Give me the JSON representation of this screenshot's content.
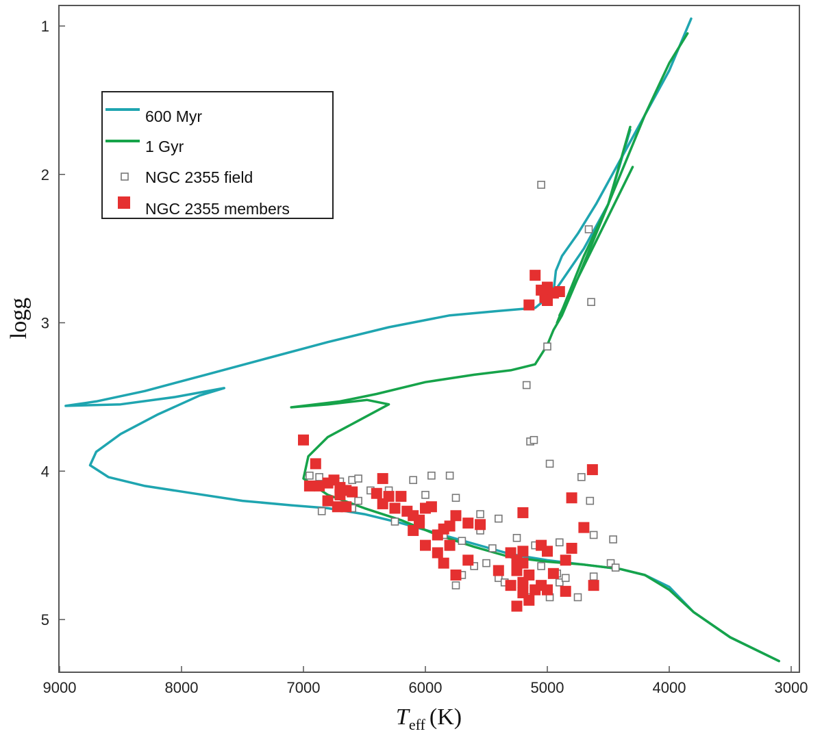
{
  "chart_data": {
    "type": "scatter",
    "xlabel": "T",
    "xlabel_sub": "eff",
    "xlabel_unit": "(K)",
    "ylabel": "logg",
    "x_reversed": true,
    "y_reversed": true,
    "xlim": [
      9050,
      2950
    ],
    "ylim": [
      0.85,
      5.37
    ],
    "x_ticks": [
      9000,
      8000,
      7000,
      6000,
      5000,
      4000,
      3000
    ],
    "y_ticks": [
      1,
      2,
      3,
      4,
      5
    ],
    "legend": {
      "position": "top-left",
      "entries": [
        {
          "label": "600 Myr",
          "kind": "line",
          "color": "#1fa5b0"
        },
        {
          "label": "1 Gyr",
          "kind": "line",
          "color": "#16a34a"
        },
        {
          "label": "NGC 2355 field",
          "kind": "open-square",
          "color": "#777777"
        },
        {
          "label": "NGC 2355 members",
          "kind": "filled-square",
          "color": "#e53030"
        }
      ]
    },
    "series": [
      {
        "name": "600 Myr",
        "type": "line",
        "color": "#1fa5b0",
        "points": [
          [
            3100,
            5.28
          ],
          [
            3500,
            5.12
          ],
          [
            3800,
            4.95
          ],
          [
            4000,
            4.78
          ],
          [
            4200,
            4.7
          ],
          [
            4400,
            4.66
          ],
          [
            4700,
            4.63
          ],
          [
            5000,
            4.6
          ],
          [
            5300,
            4.56
          ],
          [
            5600,
            4.49
          ],
          [
            5900,
            4.42
          ],
          [
            6200,
            4.35
          ],
          [
            6500,
            4.29
          ],
          [
            6800,
            4.25
          ],
          [
            7100,
            4.23
          ],
          [
            7500,
            4.2
          ],
          [
            7900,
            4.15
          ],
          [
            8300,
            4.1
          ],
          [
            8600,
            4.04
          ],
          [
            8750,
            3.96
          ],
          [
            8700,
            3.87
          ],
          [
            8500,
            3.75
          ],
          [
            8200,
            3.62
          ],
          [
            7850,
            3.49
          ],
          [
            7650,
            3.44
          ],
          [
            8050,
            3.5
          ],
          [
            8500,
            3.55
          ],
          [
            8950,
            3.56
          ],
          [
            8700,
            3.53
          ],
          [
            8300,
            3.46
          ],
          [
            7800,
            3.35
          ],
          [
            7300,
            3.24
          ],
          [
            6800,
            3.13
          ],
          [
            6300,
            3.03
          ],
          [
            5800,
            2.95
          ],
          [
            5400,
            2.92
          ],
          [
            5100,
            2.9
          ],
          [
            4950,
            2.8
          ],
          [
            4930,
            2.65
          ],
          [
            4880,
            2.55
          ],
          [
            4750,
            2.4
          ],
          [
            4600,
            2.2
          ],
          [
            4400,
            1.9
          ],
          [
            4200,
            1.6
          ],
          [
            4000,
            1.3
          ],
          [
            3820,
            0.95
          ]
        ]
      },
      {
        "name": "600 Myr",
        "type": "line",
        "color": "#1fa5b0",
        "points": [
          [
            4950,
            2.8
          ],
          [
            4700,
            2.5
          ],
          [
            4500,
            2.2
          ],
          [
            4320,
            1.7
          ]
        ]
      },
      {
        "name": "1 Gyr",
        "type": "line",
        "color": "#16a34a",
        "points": [
          [
            3100,
            5.28
          ],
          [
            3500,
            5.12
          ],
          [
            3800,
            4.95
          ],
          [
            4000,
            4.8
          ],
          [
            4200,
            4.7
          ],
          [
            4400,
            4.66
          ],
          [
            4700,
            4.63
          ],
          [
            5000,
            4.61
          ],
          [
            5300,
            4.58
          ],
          [
            5600,
            4.51
          ],
          [
            5900,
            4.43
          ],
          [
            6200,
            4.33
          ],
          [
            6500,
            4.25
          ],
          [
            6800,
            4.16
          ],
          [
            7000,
            4.05
          ],
          [
            6960,
            3.9
          ],
          [
            6800,
            3.77
          ],
          [
            6550,
            3.66
          ],
          [
            6300,
            3.55
          ],
          [
            6480,
            3.52
          ],
          [
            6800,
            3.55
          ],
          [
            7100,
            3.57
          ],
          [
            6700,
            3.53
          ],
          [
            6400,
            3.48
          ],
          [
            6000,
            3.4
          ],
          [
            5600,
            3.35
          ],
          [
            5300,
            3.32
          ],
          [
            5100,
            3.28
          ],
          [
            5000,
            3.15
          ],
          [
            4950,
            3.05
          ],
          [
            4880,
            2.95
          ],
          [
            4750,
            2.7
          ],
          [
            4600,
            2.4
          ],
          [
            4400,
            2.0
          ],
          [
            4200,
            1.6
          ],
          [
            4000,
            1.25
          ],
          [
            3850,
            1.05
          ]
        ]
      },
      {
        "name": "1 Gyr",
        "type": "line",
        "color": "#16a34a",
        "points": [
          [
            4920,
            3.0
          ],
          [
            4700,
            2.55
          ],
          [
            4500,
            2.2
          ],
          [
            4320,
            1.68
          ]
        ]
      },
      {
        "name": "1 Gyr",
        "type": "line",
        "color": "#16a34a",
        "points": [
          [
            4900,
            2.95
          ],
          [
            4600,
            2.45
          ],
          [
            4300,
            1.95
          ]
        ]
      },
      {
        "name": "NGC 2355 field",
        "type": "scatter",
        "marker": "open-square",
        "color": "#777777",
        "points": [
          [
            5050,
            2.07
          ],
          [
            4660,
            2.37
          ],
          [
            4640,
            2.86
          ],
          [
            5000,
            3.16
          ],
          [
            5170,
            3.42
          ],
          [
            5140,
            3.8
          ],
          [
            5110,
            3.79
          ],
          [
            4980,
            3.95
          ],
          [
            6950,
            4.03
          ],
          [
            6870,
            4.04
          ],
          [
            6700,
            4.07
          ],
          [
            6600,
            4.06
          ],
          [
            6550,
            4.05
          ],
          [
            6450,
            4.13
          ],
          [
            6300,
            4.13
          ],
          [
            6100,
            4.06
          ],
          [
            5950,
            4.03
          ],
          [
            5800,
            4.03
          ],
          [
            6000,
            4.16
          ],
          [
            5750,
            4.18
          ],
          [
            6550,
            4.2
          ],
          [
            6600,
            4.25
          ],
          [
            6850,
            4.27
          ],
          [
            5550,
            4.29
          ],
          [
            6250,
            4.34
          ],
          [
            6100,
            4.4
          ],
          [
            5850,
            4.43
          ],
          [
            5700,
            4.47
          ],
          [
            5550,
            4.4
          ],
          [
            5400,
            4.32
          ],
          [
            5250,
            4.45
          ],
          [
            5100,
            4.5
          ],
          [
            5800,
            4.51
          ],
          [
            5450,
            4.52
          ],
          [
            5600,
            4.64
          ],
          [
            5500,
            4.62
          ],
          [
            5700,
            4.7
          ],
          [
            5400,
            4.72
          ],
          [
            5350,
            4.75
          ],
          [
            5150,
            4.85
          ],
          [
            4980,
            4.85
          ],
          [
            4900,
            4.75
          ],
          [
            4850,
            4.72
          ],
          [
            4750,
            4.85
          ],
          [
            4480,
            4.62
          ],
          [
            4440,
            4.65
          ],
          [
            4620,
            4.43
          ],
          [
            4460,
            4.46
          ],
          [
            4650,
            4.2
          ],
          [
            4620,
            4.71
          ],
          [
            5050,
            4.64
          ],
          [
            4920,
            4.69
          ],
          [
            5750,
            4.77
          ],
          [
            4720,
            4.04
          ],
          [
            4900,
            4.48
          ]
        ]
      },
      {
        "name": "NGC 2355 members",
        "type": "scatter",
        "marker": "filled-square",
        "color": "#e53030",
        "points": [
          [
            5100,
            2.68
          ],
          [
            5050,
            2.78
          ],
          [
            5000,
            2.76
          ],
          [
            5020,
            2.83
          ],
          [
            4950,
            2.8
          ],
          [
            4900,
            2.79
          ],
          [
            5150,
            2.88
          ],
          [
            5000,
            2.85
          ],
          [
            7000,
            3.79
          ],
          [
            6900,
            3.95
          ],
          [
            6950,
            4.1
          ],
          [
            6870,
            4.1
          ],
          [
            6800,
            4.08
          ],
          [
            6750,
            4.06
          ],
          [
            6700,
            4.11
          ],
          [
            6650,
            4.13
          ],
          [
            6600,
            4.14
          ],
          [
            6700,
            4.16
          ],
          [
            6800,
            4.2
          ],
          [
            6720,
            4.24
          ],
          [
            6650,
            4.24
          ],
          [
            6350,
            4.05
          ],
          [
            6400,
            4.15
          ],
          [
            6300,
            4.17
          ],
          [
            6200,
            4.17
          ],
          [
            6350,
            4.22
          ],
          [
            6250,
            4.25
          ],
          [
            6150,
            4.27
          ],
          [
            6100,
            4.3
          ],
          [
            6050,
            4.33
          ],
          [
            6000,
            4.25
          ],
          [
            5950,
            4.24
          ],
          [
            6050,
            4.35
          ],
          [
            6100,
            4.4
          ],
          [
            5900,
            4.43
          ],
          [
            5850,
            4.39
          ],
          [
            5800,
            4.37
          ],
          [
            5750,
            4.3
          ],
          [
            5650,
            4.35
          ],
          [
            5550,
            4.36
          ],
          [
            6000,
            4.5
          ],
          [
            5900,
            4.55
          ],
          [
            5800,
            4.5
          ],
          [
            5850,
            4.62
          ],
          [
            5650,
            4.6
          ],
          [
            5750,
            4.7
          ],
          [
            5400,
            4.67
          ],
          [
            5300,
            4.55
          ],
          [
            5200,
            4.54
          ],
          [
            5250,
            4.6
          ],
          [
            5200,
            4.62
          ],
          [
            5250,
            4.67
          ],
          [
            5150,
            4.7
          ],
          [
            5200,
            4.75
          ],
          [
            5300,
            4.77
          ],
          [
            5100,
            4.8
          ],
          [
            5200,
            4.82
          ],
          [
            5150,
            4.87
          ],
          [
            5250,
            4.91
          ],
          [
            5000,
            4.8
          ],
          [
            5050,
            4.77
          ],
          [
            5050,
            4.5
          ],
          [
            5000,
            4.54
          ],
          [
            4850,
            4.81
          ],
          [
            4950,
            4.69
          ],
          [
            4800,
            4.52
          ],
          [
            4850,
            4.6
          ],
          [
            4800,
            4.18
          ],
          [
            4700,
            4.38
          ],
          [
            4620,
            4.77
          ],
          [
            4630,
            3.99
          ],
          [
            5200,
            4.28
          ]
        ]
      }
    ]
  }
}
